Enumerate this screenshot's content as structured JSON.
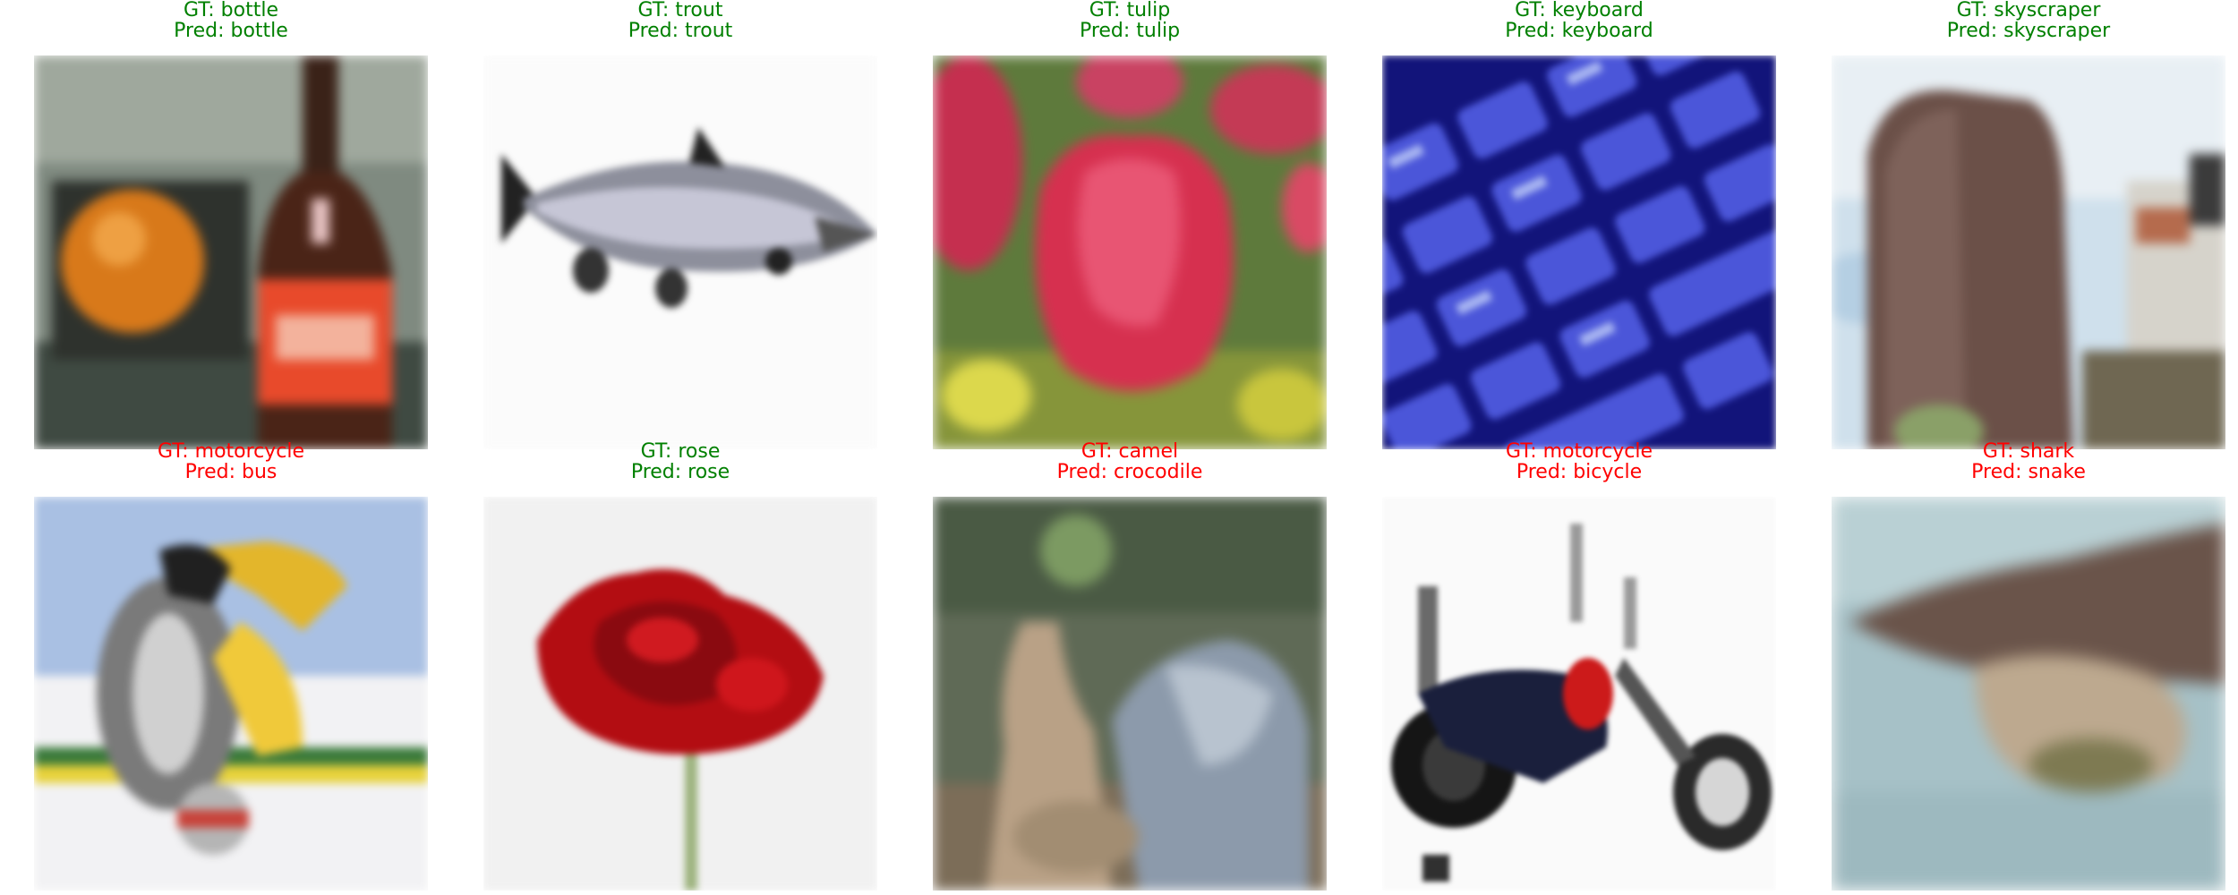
{
  "colors": {
    "correct": "#008000",
    "incorrect": "#ff0000"
  },
  "samples": [
    {
      "gt": "GT: bottle",
      "pred": "Pred: bottle",
      "gt_correct": true,
      "pred_correct": true,
      "image": "bottle-and-orange-photo"
    },
    {
      "gt": "GT: trout",
      "pred": "Pred: trout",
      "gt_correct": true,
      "pred_correct": true,
      "image": "trout-fish-photo"
    },
    {
      "gt": "GT: tulip",
      "pred": "Pred: tulip",
      "gt_correct": true,
      "pred_correct": true,
      "image": "red-tulip-photo"
    },
    {
      "gt": "GT: keyboard",
      "pred": "Pred: keyboard",
      "gt_correct": true,
      "pred_correct": true,
      "image": "blue-keyboard-photo"
    },
    {
      "gt": "GT: skyscraper",
      "pred": "Pred: skyscraper",
      "gt_correct": true,
      "pred_correct": true,
      "image": "skyscraper-photo"
    },
    {
      "gt": "GT: motorcycle",
      "pred": "Pred: bus",
      "gt_correct": false,
      "pred_correct": false,
      "image": "motorcycle-poster-photo"
    },
    {
      "gt": "GT: rose",
      "pred": "Pred: rose",
      "gt_correct": true,
      "pred_correct": true,
      "image": "red-rose-photo"
    },
    {
      "gt": "GT: camel",
      "pred": "Pred: crocodile",
      "gt_correct": false,
      "pred_correct": false,
      "image": "camel-photo"
    },
    {
      "gt": "GT: motorcycle",
      "pred": "Pred: bicycle",
      "gt_correct": false,
      "pred_correct": false,
      "image": "black-motorcycle-photo"
    },
    {
      "gt": "GT: shark",
      "pred": "Pred: snake",
      "gt_correct": false,
      "pred_correct": false,
      "image": "shark-photo"
    }
  ]
}
